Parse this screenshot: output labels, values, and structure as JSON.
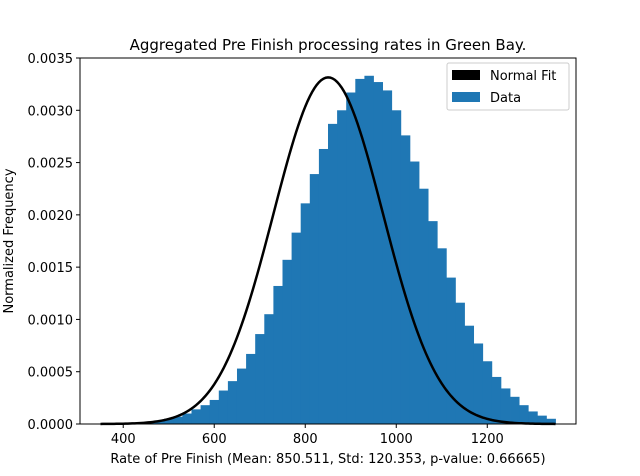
{
  "chart_data": {
    "type": "bar",
    "title": "Aggregated Pre Finish processing rates in Green Bay.",
    "xlabel": "Rate of Pre Finish (Mean: 850.511, Std: 120.353, p-value: 0.66665)",
    "ylabel": "Normalized Frequency",
    "xlim": [
      305,
      1395
    ],
    "ylim": [
      0,
      0.0035
    ],
    "x_ticks": [
      400,
      600,
      800,
      1000,
      1200
    ],
    "x_tick_labels": [
      "400",
      "600",
      "800",
      "1000",
      "1200"
    ],
    "y_ticks": [
      0,
      0.0005,
      0.001,
      0.0015,
      0.002,
      0.0025,
      0.003,
      0.0035
    ],
    "y_tick_labels": [
      "0.0000",
      "0.0005",
      "0.0010",
      "0.0015",
      "0.0020",
      "0.0025",
      "0.0030",
      "0.0035"
    ],
    "grid": false,
    "legend_position": "top-right",
    "histogram": {
      "name": "Data",
      "color": "#1f77b4",
      "bin_start": 350,
      "bin_width": 20,
      "values": [
        0,
        0,
        0,
        1e-05,
        1e-05,
        2e-05,
        3e-05,
        5e-05,
        7e-05,
        0.0001,
        0.00014,
        0.00018,
        0.00023,
        0.00032,
        0.00041,
        0.00053,
        0.00067,
        0.00086,
        0.00105,
        0.00132,
        0.00157,
        0.00183,
        0.00211,
        0.00239,
        0.00263,
        0.00287,
        0.003,
        0.00317,
        0.0033,
        0.00333,
        0.00327,
        0.00319,
        0.003,
        0.00276,
        0.00251,
        0.00225,
        0.00194,
        0.00168,
        0.0014,
        0.00116,
        0.00094,
        0.00077,
        0.0006,
        0.00045,
        0.00034,
        0.00026,
        0.00018,
        0.00012,
        8e-05,
        5e-05
      ]
    },
    "fit": {
      "name": "Normal Fit",
      "color": "#000000",
      "mean": 850.511,
      "std": 120.353,
      "x_range": [
        350,
        1350
      ]
    }
  }
}
